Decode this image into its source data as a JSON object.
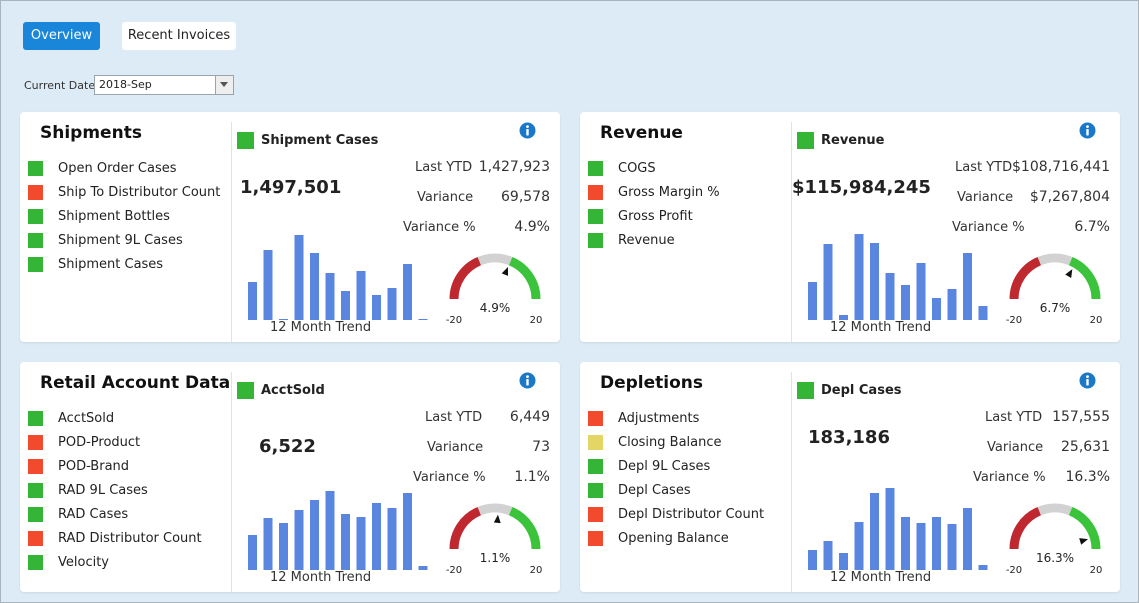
{
  "tabs": [
    {
      "label": "Overview",
      "active": true
    },
    {
      "label": "Recent Invoices",
      "active": false
    }
  ],
  "current_date": {
    "label": "Current Date",
    "value": "2018-Sep"
  },
  "colors": {
    "green": "#35b535",
    "red": "#f24a2d",
    "yellow": "#e3d665",
    "bar": "#5b86e0",
    "gauge_red": "#c0282f",
    "gauge_grey": "#d2d2d2",
    "gauge_green": "#3bc43b",
    "accent": "#1a86d9"
  },
  "panels": [
    {
      "title": "Shipments",
      "items": [
        {
          "label": "Open Order Cases",
          "status": "green"
        },
        {
          "label": "Ship To Distributor Count",
          "status": "red"
        },
        {
          "label": "Shipment Bottles",
          "status": "green"
        },
        {
          "label": "Shipment 9L Cases",
          "status": "green"
        },
        {
          "label": "Shipment Cases",
          "status": "green"
        }
      ],
      "metric": {
        "name": "Shipment Cases",
        "status": "green",
        "value": "1,497,501",
        "last_ytd_label": "Last YTD",
        "last_ytd": "1,427,923",
        "variance_label": "Variance",
        "variance": "69,578",
        "variance_pct_label": "Variance %",
        "variance_pct": "4.9%"
      },
      "trend": {
        "label": "12 Month Trend",
        "values": [
          38,
          70,
          0,
          85,
          67,
          47,
          29,
          49,
          25,
          32,
          56,
          0
        ]
      },
      "gauge": {
        "value": 4.9,
        "label": "4.9%",
        "min": -20,
        "max": 20,
        "min_label": "-20",
        "max_label": "20"
      }
    },
    {
      "title": "Revenue",
      "items": [
        {
          "label": "COGS",
          "status": "green"
        },
        {
          "label": "Gross Margin %",
          "status": "red"
        },
        {
          "label": "Gross Profit",
          "status": "green"
        },
        {
          "label": "Revenue",
          "status": "green"
        }
      ],
      "metric": {
        "name": "Revenue",
        "status": "green",
        "value": "$115,984,245",
        "last_ytd_label": "Last YTD",
        "last_ytd": "$108,716,441",
        "variance_label": "Variance",
        "variance": "$7,267,804",
        "variance_pct_label": "Variance %",
        "variance_pct": "6.7%"
      },
      "trend": {
        "label": "12 Month Trend",
        "values": [
          38,
          76,
          5,
          86,
          77,
          47,
          35,
          57,
          22,
          31,
          67,
          14
        ]
      },
      "gauge": {
        "value": 6.7,
        "label": "6.7%",
        "min": -20,
        "max": 20,
        "min_label": "-20",
        "max_label": "20"
      }
    },
    {
      "title": "Retail Account Data",
      "items": [
        {
          "label": "AcctSold",
          "status": "green"
        },
        {
          "label": "POD-Product",
          "status": "red"
        },
        {
          "label": "POD-Brand",
          "status": "red"
        },
        {
          "label": "RAD 9L Cases",
          "status": "green"
        },
        {
          "label": "RAD Cases",
          "status": "green"
        },
        {
          "label": "RAD Distributor Count",
          "status": "red"
        },
        {
          "label": "Velocity",
          "status": "green"
        }
      ],
      "metric": {
        "name": "AcctSold",
        "status": "green",
        "value": "6,522",
        "last_ytd_label": "Last YTD",
        "last_ytd": "6,449",
        "variance_label": "Variance",
        "variance": "73",
        "variance_pct_label": "Variance %",
        "variance_pct": "1.1%"
      },
      "trend": {
        "label": "12 Month Trend",
        "values": [
          35,
          52,
          47,
          60,
          70,
          79,
          56,
          53,
          67,
          62,
          77,
          4
        ]
      },
      "gauge": {
        "value": 1.1,
        "label": "1.1%",
        "min": -20,
        "max": 20,
        "min_label": "-20",
        "max_label": "20"
      }
    },
    {
      "title": "Depletions",
      "items": [
        {
          "label": "Adjustments",
          "status": "red"
        },
        {
          "label": "Closing Balance",
          "status": "yellow"
        },
        {
          "label": "Depl 9L Cases",
          "status": "green"
        },
        {
          "label": "Depl Cases",
          "status": "green"
        },
        {
          "label": "Depl Distributor Count",
          "status": "red"
        },
        {
          "label": "Opening Balance",
          "status": "red"
        }
      ],
      "metric": {
        "name": "Depl Cases",
        "status": "green",
        "value": "183,186",
        "last_ytd_label": "Last YTD",
        "last_ytd": "157,555",
        "variance_label": "Variance",
        "variance": "25,631",
        "variance_pct_label": "Variance %",
        "variance_pct": "16.3%"
      },
      "trend": {
        "label": "12 Month Trend",
        "values": [
          20,
          29,
          17,
          48,
          77,
          82,
          53,
          47,
          53,
          46,
          62,
          5
        ]
      },
      "gauge": {
        "value": 16.3,
        "label": "16.3%",
        "min": -20,
        "max": 20,
        "min_label": "-20",
        "max_label": "20"
      }
    }
  ]
}
